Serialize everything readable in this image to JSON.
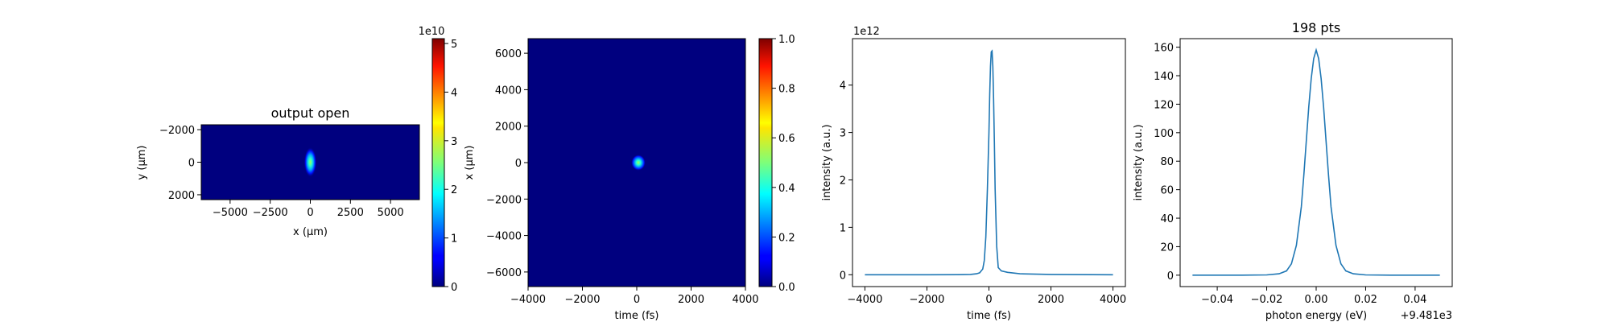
{
  "colors": {
    "line": "#1f77b4",
    "map_background": "#00007f"
  },
  "chart_data": [
    {
      "type": "heatmap",
      "title": "output open",
      "xlabel": "x (μm)",
      "ylabel": "y (μm)",
      "xlim": [
        -6800,
        6800
      ],
      "ylim": [
        2300,
        -2300
      ],
      "xticks": [
        "−5000",
        "−2500",
        "0",
        "2500",
        "5000"
      ],
      "xtick_values": [
        -5000,
        -2500,
        0,
        2500,
        5000
      ],
      "yticks": [
        "−2000",
        "0",
        "2000"
      ],
      "ytick_values": [
        -2000,
        0,
        2000
      ],
      "spot": {
        "x": 0,
        "y": 0,
        "sigma_x": 180,
        "sigma_y": 420,
        "peak": 50000000000.0
      },
      "colorbar": {
        "colormap": "jet",
        "range": [
          0,
          5.1
        ],
        "ticks": [
          "0",
          "1",
          "2",
          "3",
          "4",
          "5"
        ],
        "tick_values": [
          0,
          1,
          2,
          3,
          4,
          5
        ],
        "offset_label": "1e10"
      }
    },
    {
      "type": "heatmap",
      "title": "",
      "xlabel": "time (fs)",
      "ylabel": "x (μm)",
      "xlim": [
        -4000,
        4000
      ],
      "ylim": [
        -6800,
        6800
      ],
      "xticks": [
        "−4000",
        "−2000",
        "0",
        "2000",
        "4000"
      ],
      "xtick_values": [
        -4000,
        -2000,
        0,
        2000,
        4000
      ],
      "yticks": [
        "−6000",
        "−4000",
        "−2000",
        "0",
        "2000",
        "4000",
        "6000"
      ],
      "ytick_values": [
        -6000,
        -4000,
        -2000,
        0,
        2000,
        4000,
        6000
      ],
      "spot": {
        "x": 60,
        "y": 0,
        "sigma_x": 120,
        "sigma_y": 200,
        "peak": 1.0
      },
      "colorbar": {
        "colormap": "jet",
        "range": [
          0,
          1.0
        ],
        "ticks": [
          "0.0",
          "0.2",
          "0.4",
          "0.6",
          "0.8",
          "1.0"
        ],
        "tick_values": [
          0,
          0.2,
          0.4,
          0.6,
          0.8,
          1.0
        ],
        "offset_label": ""
      }
    },
    {
      "type": "line",
      "title": "",
      "xlabel": "time (fs)",
      "ylabel": "intensity (a.u.)",
      "xlim": [
        -4400,
        4400
      ],
      "ylim": [
        -0.25,
        4.98
      ],
      "xticks": [
        "−4000",
        "−2000",
        "0",
        "2000",
        "4000"
      ],
      "xtick_values": [
        -4000,
        -2000,
        0,
        2000,
        4000
      ],
      "yticks": [
        "0",
        "1",
        "2",
        "3",
        "4"
      ],
      "ytick_values": [
        0,
        1,
        2,
        3,
        4
      ],
      "offset_label": "1e12",
      "x": [
        -4000,
        -2000,
        -1000,
        -600,
        -400,
        -300,
        -200,
        -150,
        -100,
        -50,
        0,
        25,
        50,
        75,
        100,
        125,
        150,
        175,
        200,
        250,
        300,
        400,
        600,
        1000,
        2000,
        4000
      ],
      "values": [
        0,
        0,
        0.001,
        0.005,
        0.02,
        0.04,
        0.12,
        0.3,
        0.8,
        1.8,
        3.0,
        3.8,
        4.4,
        4.7,
        4.72,
        4.4,
        3.7,
        2.8,
        1.8,
        0.6,
        0.15,
        0.08,
        0.05,
        0.02,
        0.005,
        0
      ]
    },
    {
      "type": "line",
      "title": "198 pts",
      "xlabel": "photon energy (eV)",
      "ylabel": "intensity (a.u.)",
      "xlim": [
        -0.055,
        0.055
      ],
      "ylim": [
        -8,
        166
      ],
      "xticks": [
        "−0.04",
        "−0.02",
        "0.00",
        "0.02",
        "0.04"
      ],
      "xtick_values": [
        -0.04,
        -0.02,
        0,
        0.02,
        0.04
      ],
      "yticks": [
        "0",
        "20",
        "40",
        "60",
        "80",
        "100",
        "120",
        "140",
        "160"
      ],
      "ytick_values": [
        0,
        20,
        40,
        60,
        80,
        100,
        120,
        140,
        160
      ],
      "offset_label": "+9.481e3",
      "x": [
        -0.05,
        -0.03,
        -0.02,
        -0.015,
        -0.012,
        -0.01,
        -0.008,
        -0.006,
        -0.005,
        -0.004,
        -0.003,
        -0.002,
        -0.001,
        0,
        0.001,
        0.002,
        0.003,
        0.004,
        0.005,
        0.006,
        0.008,
        0.01,
        0.012,
        0.015,
        0.02,
        0.03,
        0.05
      ],
      "values": [
        0,
        0,
        0.2,
        1,
        3,
        8,
        21,
        48,
        70,
        94,
        118,
        138,
        152,
        158,
        152,
        138,
        118,
        94,
        70,
        48,
        21,
        8,
        3,
        1,
        0.2,
        0,
        0
      ]
    }
  ]
}
